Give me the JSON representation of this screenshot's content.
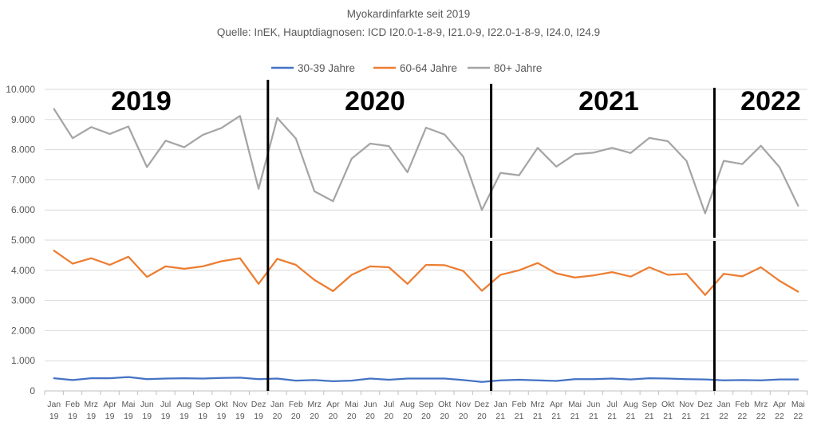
{
  "chart_data": {
    "type": "line",
    "title": "Myokardinfarkte seit 2019",
    "subtitle": "Quelle: InEK, Hauptdiagnosen: ICD I20.0-1-8-9,  I21.0-9, I22.0-1-8-9,  I24.0, I24.9",
    "xlabel": "",
    "ylabel": "",
    "ylim": [
      0,
      10000
    ],
    "yticks": [
      "0",
      "1.000",
      "2.000",
      "3.000",
      "4.000",
      "5.000",
      "6.000",
      "7.000",
      "8.000",
      "9.000",
      "10.000"
    ],
    "ytick_values": [
      0,
      1000,
      2000,
      3000,
      4000,
      5000,
      6000,
      7000,
      8000,
      9000,
      10000
    ],
    "grid": true,
    "legend_position": "top",
    "categories": [
      [
        "Jan",
        "19"
      ],
      [
        "Feb",
        "19"
      ],
      [
        "Mrz",
        "19"
      ],
      [
        "Apr",
        "19"
      ],
      [
        "Mai",
        "19"
      ],
      [
        "Jun",
        "19"
      ],
      [
        "Jul",
        "19"
      ],
      [
        "Aug",
        "19"
      ],
      [
        "Sep",
        "19"
      ],
      [
        "Okt",
        "19"
      ],
      [
        "Nov",
        "19"
      ],
      [
        "Dez",
        "19"
      ],
      [
        "Jan",
        "20"
      ],
      [
        "Feb",
        "20"
      ],
      [
        "Mrz",
        "20"
      ],
      [
        "Apr",
        "20"
      ],
      [
        "Mai",
        "20"
      ],
      [
        "Jun",
        "20"
      ],
      [
        "Jul",
        "20"
      ],
      [
        "Aug",
        "20"
      ],
      [
        "Sep",
        "20"
      ],
      [
        "Okt",
        "20"
      ],
      [
        "Nov",
        "20"
      ],
      [
        "Dez",
        "20"
      ],
      [
        "Jan",
        "21"
      ],
      [
        "Feb",
        "21"
      ],
      [
        "Mrz",
        "21"
      ],
      [
        "Apr",
        "21"
      ],
      [
        "Mai",
        "21"
      ],
      [
        "Jun",
        "21"
      ],
      [
        "Jul",
        "21"
      ],
      [
        "Aug",
        "21"
      ],
      [
        "Sep",
        "21"
      ],
      [
        "Okt",
        "21"
      ],
      [
        "Nov",
        "21"
      ],
      [
        "Dez",
        "21"
      ],
      [
        "Jan",
        "22"
      ],
      [
        "Feb",
        "22"
      ],
      [
        "Mrz",
        "22"
      ],
      [
        "Apr",
        "22"
      ],
      [
        "Mai",
        "22"
      ]
    ],
    "series": [
      {
        "name": "30-39 Jahre",
        "color": "#4472C4",
        "values": [
          420,
          360,
          420,
          420,
          460,
          390,
          410,
          420,
          410,
          430,
          440,
          390,
          410,
          340,
          360,
          320,
          340,
          410,
          370,
          410,
          410,
          410,
          360,
          300,
          350,
          370,
          350,
          330,
          390,
          390,
          410,
          380,
          420,
          410,
          390,
          380,
          350,
          360,
          350,
          380,
          380
        ]
      },
      {
        "name": "60-64 Jahre",
        "color": "#ED7D31",
        "values": [
          4650,
          4220,
          4400,
          4180,
          4450,
          3780,
          4130,
          4050,
          4130,
          4300,
          4400,
          3550,
          4380,
          4180,
          3680,
          3310,
          3850,
          4130,
          4100,
          3550,
          4180,
          4170,
          3980,
          3320,
          3850,
          4000,
          4240,
          3900,
          3760,
          3830,
          3940,
          3790,
          4100,
          3850,
          3880,
          3180,
          3880,
          3800,
          4100,
          3650,
          3290
        ]
      },
      {
        "name": "80+ Jahre",
        "color": "#A5A5A5",
        "values": [
          9350,
          8380,
          8750,
          8520,
          8770,
          7420,
          8300,
          8080,
          8490,
          8720,
          9120,
          6700,
          9050,
          8370,
          6620,
          6290,
          7700,
          8200,
          8120,
          7250,
          8730,
          8500,
          7770,
          6000,
          7230,
          7150,
          8060,
          7440,
          7850,
          7900,
          8060,
          7890,
          8390,
          8280,
          7630,
          5890,
          7630,
          7520,
          8130,
          7420,
          6140
        ]
      }
    ],
    "year_labels": [
      "2019",
      "2020",
      "2021",
      "2022"
    ],
    "year_dividers_after_index": [
      11.5,
      23.5,
      35.5
    ]
  }
}
